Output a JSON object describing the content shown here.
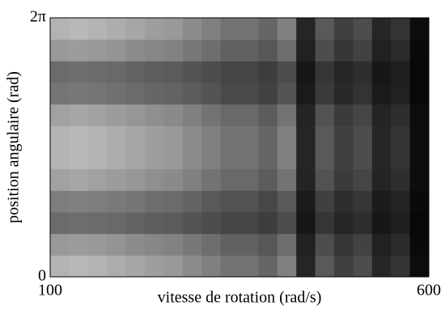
{
  "chart_data": {
    "type": "heatmap",
    "xlabel": "vitesse de rotation (rad/s)",
    "ylabel": "position angulaire (rad)",
    "x": [
      112.5,
      137.5,
      162.5,
      187.5,
      212.5,
      237.5,
      262.5,
      287.5,
      312.5,
      337.5,
      362.5,
      387.5,
      412.5,
      437.5,
      462.5,
      487.5,
      512.5,
      537.5,
      562.5,
      587.5
    ],
    "y": [
      0.262,
      0.785,
      1.309,
      1.833,
      2.356,
      2.88,
      3.403,
      3.927,
      4.451,
      4.974,
      5.498,
      6.021
    ],
    "z": [
      [
        0.7,
        0.72,
        0.7,
        0.68,
        0.65,
        0.62,
        0.6,
        0.55,
        0.5,
        0.45,
        0.45,
        0.4,
        0.5,
        0.15,
        0.35,
        0.25,
        0.3,
        0.15,
        0.2,
        0.05
      ],
      [
        0.6,
        0.61,
        0.6,
        0.58,
        0.55,
        0.53,
        0.51,
        0.47,
        0.43,
        0.38,
        0.38,
        0.34,
        0.43,
        0.13,
        0.3,
        0.21,
        0.26,
        0.13,
        0.17,
        0.04
      ],
      [
        0.42,
        0.43,
        0.42,
        0.41,
        0.39,
        0.37,
        0.36,
        0.33,
        0.3,
        0.27,
        0.27,
        0.24,
        0.3,
        0.09,
        0.21,
        0.15,
        0.18,
        0.09,
        0.12,
        0.03
      ],
      [
        0.49,
        0.5,
        0.49,
        0.48,
        0.46,
        0.43,
        0.42,
        0.39,
        0.35,
        0.32,
        0.32,
        0.28,
        0.35,
        0.11,
        0.25,
        0.18,
        0.21,
        0.11,
        0.14,
        0.04
      ],
      [
        0.63,
        0.65,
        0.63,
        0.61,
        0.59,
        0.56,
        0.54,
        0.5,
        0.45,
        0.41,
        0.41,
        0.36,
        0.45,
        0.14,
        0.32,
        0.23,
        0.27,
        0.14,
        0.18,
        0.05
      ],
      [
        0.7,
        0.72,
        0.7,
        0.68,
        0.65,
        0.62,
        0.6,
        0.55,
        0.5,
        0.45,
        0.45,
        0.4,
        0.5,
        0.15,
        0.35,
        0.25,
        0.3,
        0.15,
        0.2,
        0.05
      ],
      [
        0.7,
        0.72,
        0.7,
        0.68,
        0.65,
        0.62,
        0.6,
        0.55,
        0.5,
        0.45,
        0.45,
        0.4,
        0.5,
        0.15,
        0.35,
        0.25,
        0.3,
        0.15,
        0.2,
        0.05
      ],
      [
        0.63,
        0.65,
        0.63,
        0.61,
        0.59,
        0.56,
        0.54,
        0.5,
        0.45,
        0.41,
        0.41,
        0.36,
        0.45,
        0.14,
        0.32,
        0.23,
        0.27,
        0.14,
        0.18,
        0.05
      ],
      [
        0.46,
        0.47,
        0.46,
        0.44,
        0.42,
        0.4,
        0.39,
        0.36,
        0.33,
        0.29,
        0.29,
        0.26,
        0.33,
        0.1,
        0.23,
        0.16,
        0.2,
        0.1,
        0.13,
        0.03
      ],
      [
        0.42,
        0.43,
        0.42,
        0.41,
        0.39,
        0.37,
        0.36,
        0.33,
        0.3,
        0.27,
        0.27,
        0.24,
        0.3,
        0.09,
        0.21,
        0.15,
        0.18,
        0.09,
        0.12,
        0.03
      ],
      [
        0.6,
        0.61,
        0.6,
        0.58,
        0.55,
        0.53,
        0.51,
        0.47,
        0.43,
        0.38,
        0.38,
        0.34,
        0.43,
        0.13,
        0.3,
        0.21,
        0.26,
        0.13,
        0.17,
        0.04
      ],
      [
        0.7,
        0.72,
        0.7,
        0.68,
        0.65,
        0.62,
        0.6,
        0.55,
        0.5,
        0.45,
        0.45,
        0.4,
        0.5,
        0.15,
        0.35,
        0.25,
        0.3,
        0.15,
        0.2,
        0.05
      ]
    ],
    "xlim": [
      100,
      600
    ],
    "xticks": [
      100,
      600
    ],
    "ylim": [
      0,
      6.283
    ],
    "yticks": [
      0,
      {
        "value": 6.283,
        "label": "2π"
      }
    ]
  }
}
